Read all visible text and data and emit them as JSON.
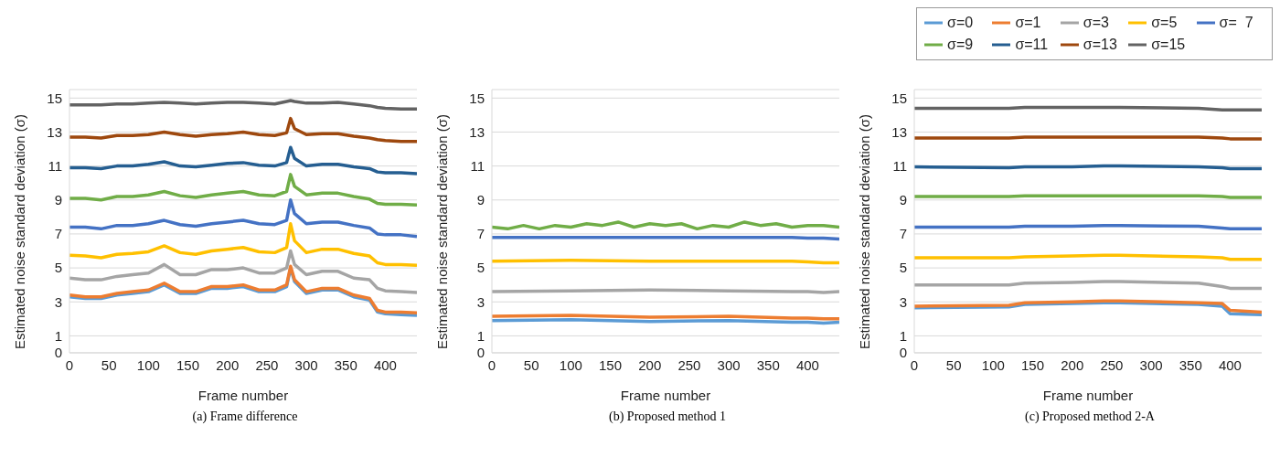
{
  "chart_data": [
    {
      "type": "line",
      "title": "(a) Frame difference",
      "xlabel": "Frame number",
      "ylabel": "Estimated noise standard deviation (σ)",
      "xlim": [
        0,
        440
      ],
      "xticks": [
        0,
        50,
        100,
        150,
        200,
        250,
        300,
        350,
        400
      ],
      "ylim": [
        0,
        15.5
      ],
      "yticks": [
        0,
        1,
        3,
        5,
        7,
        9,
        11,
        13,
        15
      ],
      "grid": "y",
      "legend": false,
      "series": [
        {
          "color": "#5b9bd5",
          "x": [
            0,
            20,
            40,
            60,
            80,
            100,
            120,
            140,
            160,
            180,
            200,
            220,
            240,
            260,
            275,
            280,
            285,
            300,
            320,
            340,
            360,
            380,
            390,
            400,
            420,
            440
          ],
          "values": [
            3.3,
            3.2,
            3.2,
            3.4,
            3.5,
            3.6,
            4.0,
            3.5,
            3.5,
            3.8,
            3.8,
            3.9,
            3.6,
            3.6,
            3.9,
            5.0,
            4.2,
            3.5,
            3.7,
            3.7,
            3.3,
            3.1,
            2.4,
            2.3,
            2.25,
            2.2
          ]
        },
        {
          "color": "#ed7d31",
          "x": [
            0,
            20,
            40,
            60,
            80,
            100,
            120,
            140,
            160,
            180,
            200,
            220,
            240,
            260,
            275,
            280,
            285,
            300,
            320,
            340,
            360,
            380,
            390,
            400,
            420,
            440
          ],
          "values": [
            3.4,
            3.3,
            3.3,
            3.5,
            3.6,
            3.7,
            4.1,
            3.6,
            3.6,
            3.9,
            3.9,
            4.0,
            3.7,
            3.7,
            4.0,
            5.1,
            4.3,
            3.6,
            3.8,
            3.8,
            3.4,
            3.2,
            2.5,
            2.4,
            2.4,
            2.35
          ]
        },
        {
          "color": "#a5a5a5",
          "x": [
            0,
            20,
            40,
            60,
            80,
            100,
            120,
            140,
            160,
            180,
            200,
            220,
            240,
            260,
            275,
            280,
            285,
            300,
            320,
            340,
            360,
            380,
            390,
            400,
            420,
            440
          ],
          "values": [
            4.4,
            4.3,
            4.3,
            4.5,
            4.6,
            4.7,
            5.2,
            4.6,
            4.6,
            4.9,
            4.9,
            5.0,
            4.7,
            4.7,
            5.0,
            6.0,
            5.2,
            4.6,
            4.8,
            4.8,
            4.4,
            4.3,
            3.8,
            3.65,
            3.6,
            3.55
          ]
        },
        {
          "color": "#ffc000",
          "x": [
            0,
            20,
            40,
            60,
            80,
            100,
            120,
            140,
            160,
            180,
            200,
            220,
            240,
            260,
            275,
            280,
            285,
            300,
            320,
            340,
            360,
            380,
            390,
            400,
            420,
            440
          ],
          "values": [
            5.75,
            5.7,
            5.6,
            5.8,
            5.85,
            5.95,
            6.3,
            5.9,
            5.8,
            6.0,
            6.1,
            6.2,
            5.95,
            5.9,
            6.2,
            7.6,
            6.6,
            5.9,
            6.1,
            6.1,
            5.85,
            5.7,
            5.3,
            5.2,
            5.2,
            5.15
          ]
        },
        {
          "color": "#4472c4",
          "x": [
            0,
            20,
            40,
            60,
            80,
            100,
            120,
            140,
            160,
            180,
            200,
            220,
            240,
            260,
            275,
            280,
            285,
            300,
            320,
            340,
            360,
            380,
            390,
            400,
            420,
            440
          ],
          "values": [
            7.4,
            7.4,
            7.3,
            7.5,
            7.5,
            7.6,
            7.8,
            7.55,
            7.45,
            7.6,
            7.7,
            7.8,
            7.6,
            7.55,
            7.8,
            9.0,
            8.2,
            7.6,
            7.7,
            7.7,
            7.5,
            7.35,
            7.0,
            6.95,
            6.95,
            6.85
          ]
        },
        {
          "color": "#70ad47",
          "x": [
            0,
            20,
            40,
            60,
            80,
            100,
            120,
            140,
            160,
            180,
            200,
            220,
            240,
            260,
            275,
            280,
            285,
            300,
            320,
            340,
            360,
            380,
            390,
            400,
            420,
            440
          ],
          "values": [
            9.1,
            9.1,
            9.0,
            9.2,
            9.2,
            9.3,
            9.5,
            9.25,
            9.15,
            9.3,
            9.4,
            9.5,
            9.3,
            9.25,
            9.5,
            10.5,
            9.8,
            9.3,
            9.4,
            9.4,
            9.2,
            9.05,
            8.8,
            8.75,
            8.75,
            8.7
          ]
        },
        {
          "color": "#255e91",
          "x": [
            0,
            20,
            40,
            60,
            80,
            100,
            120,
            140,
            160,
            180,
            200,
            220,
            240,
            260,
            275,
            280,
            285,
            300,
            320,
            340,
            360,
            380,
            390,
            400,
            420,
            440
          ],
          "values": [
            10.9,
            10.9,
            10.85,
            11.0,
            11.0,
            11.1,
            11.25,
            11.0,
            10.95,
            11.05,
            11.15,
            11.2,
            11.05,
            11.0,
            11.2,
            12.1,
            11.45,
            11.0,
            11.1,
            11.1,
            10.95,
            10.85,
            10.65,
            10.6,
            10.6,
            10.55
          ]
        },
        {
          "color": "#9e480e",
          "x": [
            0,
            20,
            40,
            60,
            80,
            100,
            120,
            140,
            160,
            180,
            200,
            220,
            240,
            260,
            275,
            280,
            285,
            300,
            320,
            340,
            360,
            380,
            390,
            400,
            420,
            440
          ],
          "values": [
            12.7,
            12.7,
            12.65,
            12.8,
            12.8,
            12.85,
            13.0,
            12.85,
            12.75,
            12.85,
            12.9,
            13.0,
            12.85,
            12.8,
            12.95,
            13.8,
            13.2,
            12.85,
            12.9,
            12.9,
            12.75,
            12.65,
            12.55,
            12.5,
            12.45,
            12.45
          ]
        },
        {
          "color": "#636363",
          "x": [
            0,
            20,
            40,
            60,
            80,
            100,
            120,
            140,
            160,
            180,
            200,
            220,
            240,
            260,
            275,
            280,
            285,
            300,
            320,
            340,
            360,
            380,
            390,
            400,
            420,
            440
          ],
          "values": [
            14.6,
            14.6,
            14.6,
            14.65,
            14.65,
            14.7,
            14.75,
            14.7,
            14.65,
            14.7,
            14.75,
            14.75,
            14.7,
            14.65,
            14.8,
            14.85,
            14.8,
            14.7,
            14.7,
            14.75,
            14.65,
            14.55,
            14.45,
            14.4,
            14.35,
            14.35
          ]
        }
      ]
    },
    {
      "type": "line",
      "title": "(b) Proposed method 1",
      "xlabel": "Frame number",
      "ylabel": "Estimated noise standard deviation (σ)",
      "xlim": [
        0,
        440
      ],
      "xticks": [
        0,
        50,
        100,
        150,
        200,
        250,
        300,
        350,
        400
      ],
      "ylim": [
        0,
        15.5
      ],
      "yticks": [
        0,
        1,
        3,
        5,
        7,
        9,
        11,
        13,
        15
      ],
      "grid": "y",
      "legend": false,
      "series": [
        {
          "color": "#5b9bd5",
          "x": [
            0,
            100,
            200,
            300,
            380,
            400,
            420,
            440
          ],
          "values": [
            1.9,
            1.95,
            1.85,
            1.9,
            1.8,
            1.8,
            1.75,
            1.8
          ]
        },
        {
          "color": "#ed7d31",
          "x": [
            0,
            100,
            200,
            300,
            380,
            400,
            420,
            440
          ],
          "values": [
            2.15,
            2.2,
            2.1,
            2.15,
            2.05,
            2.05,
            2.0,
            2.0
          ]
        },
        {
          "color": "#a5a5a5",
          "x": [
            0,
            100,
            200,
            300,
            380,
            400,
            420,
            440
          ],
          "values": [
            3.6,
            3.65,
            3.7,
            3.65,
            3.6,
            3.6,
            3.55,
            3.6
          ]
        },
        {
          "color": "#ffc000",
          "x": [
            0,
            100,
            200,
            300,
            380,
            400,
            420,
            440
          ],
          "values": [
            5.4,
            5.45,
            5.4,
            5.4,
            5.4,
            5.35,
            5.3,
            5.3
          ]
        },
        {
          "color": "#4472c4",
          "x": [
            0,
            100,
            200,
            300,
            380,
            400,
            420,
            440
          ],
          "values": [
            6.8,
            6.8,
            6.8,
            6.8,
            6.8,
            6.75,
            6.75,
            6.7
          ]
        },
        {
          "color": "#70ad47",
          "x": [
            0,
            20,
            40,
            60,
            80,
            100,
            120,
            140,
            160,
            180,
            200,
            220,
            240,
            260,
            280,
            300,
            320,
            340,
            360,
            380,
            400,
            420,
            440
          ],
          "values": [
            7.4,
            7.3,
            7.5,
            7.3,
            7.5,
            7.4,
            7.6,
            7.5,
            7.7,
            7.4,
            7.6,
            7.5,
            7.6,
            7.3,
            7.5,
            7.4,
            7.7,
            7.5,
            7.6,
            7.4,
            7.5,
            7.5,
            7.4
          ]
        }
      ]
    },
    {
      "type": "line",
      "title": "(c) Proposed method 2-A",
      "xlabel": "Frame number",
      "ylabel": "Estimated noise standard deviation (σ)",
      "xlim": [
        0,
        440
      ],
      "xticks": [
        0,
        50,
        100,
        150,
        200,
        250,
        300,
        350,
        400
      ],
      "ylim": [
        0,
        15.5
      ],
      "yticks": [
        0,
        1,
        3,
        5,
        7,
        9,
        11,
        13,
        15
      ],
      "grid": "y",
      "legend": "top right",
      "series": [
        {
          "name": "σ=0",
          "color": "#5b9bd5",
          "x": [
            0,
            120,
            140,
            200,
            240,
            260,
            360,
            390,
            400,
            440
          ],
          "values": [
            2.65,
            2.7,
            2.85,
            2.9,
            2.95,
            2.95,
            2.85,
            2.75,
            2.3,
            2.25
          ]
        },
        {
          "name": "σ=1",
          "color": "#ed7d31",
          "x": [
            0,
            120,
            140,
            200,
            240,
            260,
            360,
            390,
            400,
            440
          ],
          "values": [
            2.75,
            2.8,
            2.95,
            3.0,
            3.05,
            3.05,
            2.95,
            2.9,
            2.5,
            2.4
          ]
        },
        {
          "name": "σ=3",
          "color": "#a5a5a5",
          "x": [
            0,
            120,
            140,
            200,
            240,
            260,
            360,
            390,
            400,
            440
          ],
          "values": [
            4.0,
            4.0,
            4.1,
            4.15,
            4.2,
            4.2,
            4.1,
            3.9,
            3.8,
            3.8
          ]
        },
        {
          "name": "σ=5",
          "color": "#ffc000",
          "x": [
            0,
            120,
            140,
            200,
            240,
            260,
            360,
            390,
            400,
            440
          ],
          "values": [
            5.6,
            5.6,
            5.65,
            5.7,
            5.75,
            5.75,
            5.65,
            5.6,
            5.5,
            5.5
          ]
        },
        {
          "name": "σ=  7",
          "color": "#4472c4",
          "x": [
            0,
            120,
            140,
            200,
            240,
            260,
            360,
            390,
            400,
            440
          ],
          "values": [
            7.4,
            7.4,
            7.45,
            7.45,
            7.5,
            7.5,
            7.45,
            7.35,
            7.3,
            7.3
          ]
        },
        {
          "name": "σ=9",
          "color": "#70ad47",
          "x": [
            0,
            120,
            140,
            200,
            240,
            260,
            360,
            390,
            400,
            440
          ],
          "values": [
            9.2,
            9.2,
            9.25,
            9.25,
            9.25,
            9.25,
            9.25,
            9.2,
            9.15,
            9.15
          ]
        },
        {
          "name": "σ=11",
          "color": "#255e91",
          "x": [
            0,
            120,
            140,
            200,
            240,
            260,
            360,
            390,
            400,
            440
          ],
          "values": [
            10.95,
            10.9,
            10.95,
            10.95,
            11.0,
            11.0,
            10.95,
            10.9,
            10.85,
            10.85
          ]
        },
        {
          "name": "σ=13",
          "color": "#9e480e",
          "x": [
            0,
            120,
            140,
            200,
            240,
            260,
            360,
            390,
            400,
            440
          ],
          "values": [
            12.65,
            12.65,
            12.7,
            12.7,
            12.7,
            12.7,
            12.7,
            12.65,
            12.6,
            12.6
          ]
        },
        {
          "name": "σ=15",
          "color": "#636363",
          "x": [
            0,
            120,
            140,
            200,
            240,
            260,
            360,
            390,
            400,
            440
          ],
          "values": [
            14.4,
            14.4,
            14.45,
            14.45,
            14.45,
            14.45,
            14.4,
            14.3,
            14.3,
            14.3
          ]
        }
      ]
    }
  ]
}
